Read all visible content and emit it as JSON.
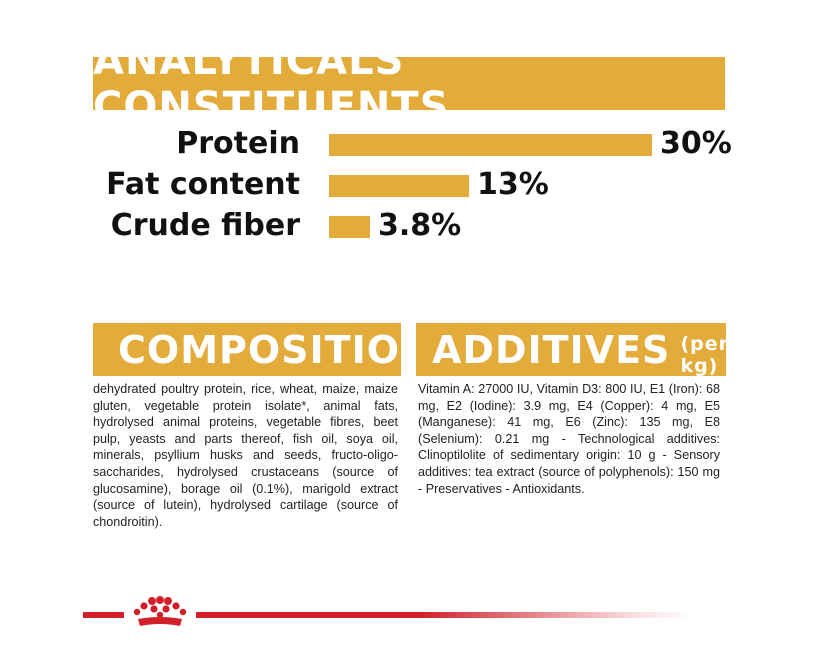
{
  "analyticals": {
    "title": "ANALYTICALS CONSTITUENTS",
    "rows": [
      {
        "label": "Protein",
        "value_text": "30%",
        "value": 30
      },
      {
        "label": "Fat content",
        "value_text": "13%",
        "value": 13
      },
      {
        "label": "Crude fiber",
        "value_text": "3.8%",
        "value": 3.8
      }
    ]
  },
  "composition": {
    "title": "COMPOSITION",
    "text": "dehydrated poultry protein, rice, wheat, maize, maize gluten, vegetable protein isolate*, animal fats, hydrolysed animal proteins, vegetable fibres, beet pulp, yeasts and parts thereof, fish oil, soya oil, minerals, psyllium husks and seeds, fructo-oligo-saccharides, hydrolysed crustaceans (source of glucosamine), borage oil (0.1%), marigold extract (source of lutein), hydrolysed cartilage (source of chondroitin)."
  },
  "additives": {
    "title": "ADDITIVES",
    "unit": "(per kg)",
    "text": "Vitamin A: 27000 IU, Vitamin D3: 800 IU, E1 (Iron): 68 mg, E2 (Iodine): 3.9 mg, E4 (Copper): 4 mg, E5 (Manganese): 41 mg, E6 (Zinc): 135 mg, E8 (Selenium): 0.21 mg - Technological additives: Clinoptilolite of sedimentary origin: 10 g - Sensory additives: tea extract (source of polyphenols): 150 mg - Preservatives - Antioxidants."
  },
  "colors": {
    "accent": "#e3ab3a",
    "brand_red": "#d2202a"
  },
  "icons": {
    "logo": "royal-canin-crown-icon"
  }
}
